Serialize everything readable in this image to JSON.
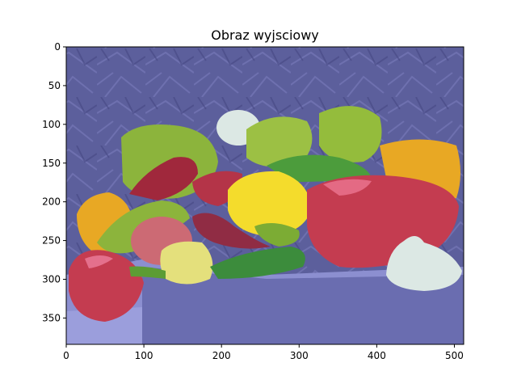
{
  "chart_data": {
    "type": "heatmap",
    "title": "Obraz wyjsciowy",
    "xlabel": "",
    "ylabel": "",
    "xlim": [
      0,
      512
    ],
    "ylim": [
      384,
      0
    ],
    "x_ticks": [
      0,
      100,
      200,
      300,
      400,
      500
    ],
    "y_ticks": [
      0,
      50,
      100,
      150,
      200,
      250,
      300,
      350
    ],
    "grid": false,
    "legend": "none",
    "colors": {
      "background_cloth": "#5c5f9c",
      "table_cloth": "#8c8fd0",
      "green_pepper": "#8cb43c",
      "dark_green_pepper": "#3c8c3c",
      "yellow_pepper": "#f4dc2c",
      "orange_pepper": "#e8a824",
      "red_pepper": "#c43c50",
      "pale_pepper": "#e4e07c",
      "garlic": "#dce8e4"
    }
  }
}
